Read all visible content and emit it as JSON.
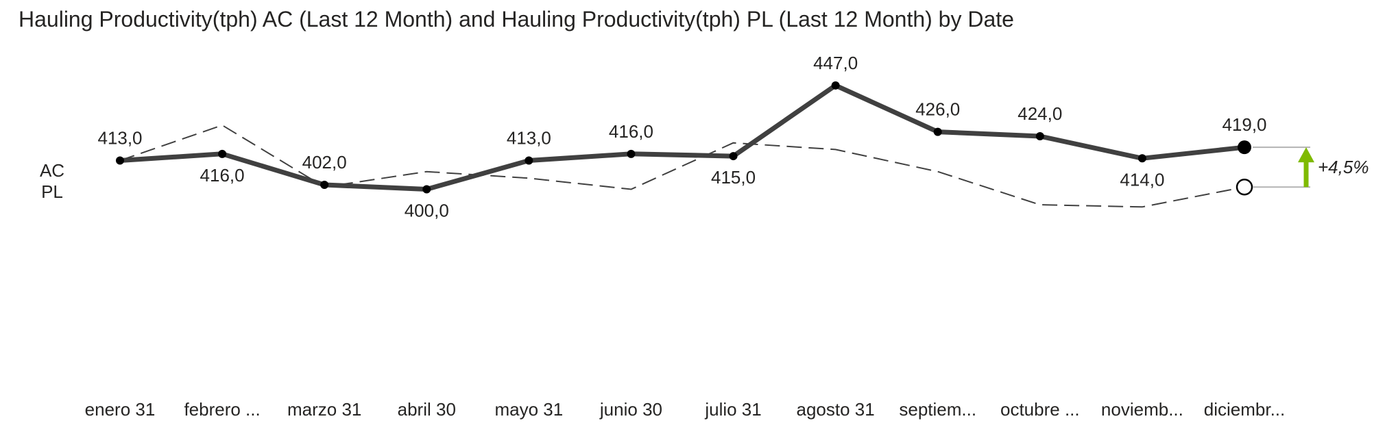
{
  "chart_data": {
    "type": "line",
    "title": "Hauling Productivity(tph) AC (Last 12 Month) and Hauling Productivity(tph) PL (Last 12 Month) by Date",
    "categories": [
      "enero 31",
      "febrero ...",
      "marzo 31",
      "abril 30",
      "mayo 31",
      "junio 30",
      "julio 31",
      "agosto 31",
      "septiem...",
      "octubre ...",
      "noviemb...",
      "diciembr..."
    ],
    "series": [
      {
        "name": "AC",
        "values": [
          413.0,
          416.0,
          402.0,
          400.0,
          413.0,
          416.0,
          415.0,
          447.0,
          426.0,
          424.0,
          414.0,
          419.0
        ],
        "labels": [
          "413,0",
          "416,0",
          "402,0",
          "400,0",
          "413,0",
          "416,0",
          "415,0",
          "447,0",
          "426,0",
          "424,0",
          "414,0",
          "419,0"
        ],
        "style": "solid"
      },
      {
        "name": "PL",
        "values": [
          413.0,
          429.0,
          401.0,
          408.0,
          405.0,
          400.0,
          421.0,
          418.0,
          408.0,
          393.0,
          392.0,
          401.0
        ],
        "style": "dashed"
      }
    ],
    "variance": {
      "label": "+4,5%",
      "color": "#7fba00"
    },
    "ylim": [
      380,
      455
    ],
    "grid": false,
    "legend_placement": "left"
  },
  "colors": {
    "ac": "#404040",
    "pl": "#404040",
    "variance": "#7fba00",
    "connector": "#b3b3b3"
  }
}
